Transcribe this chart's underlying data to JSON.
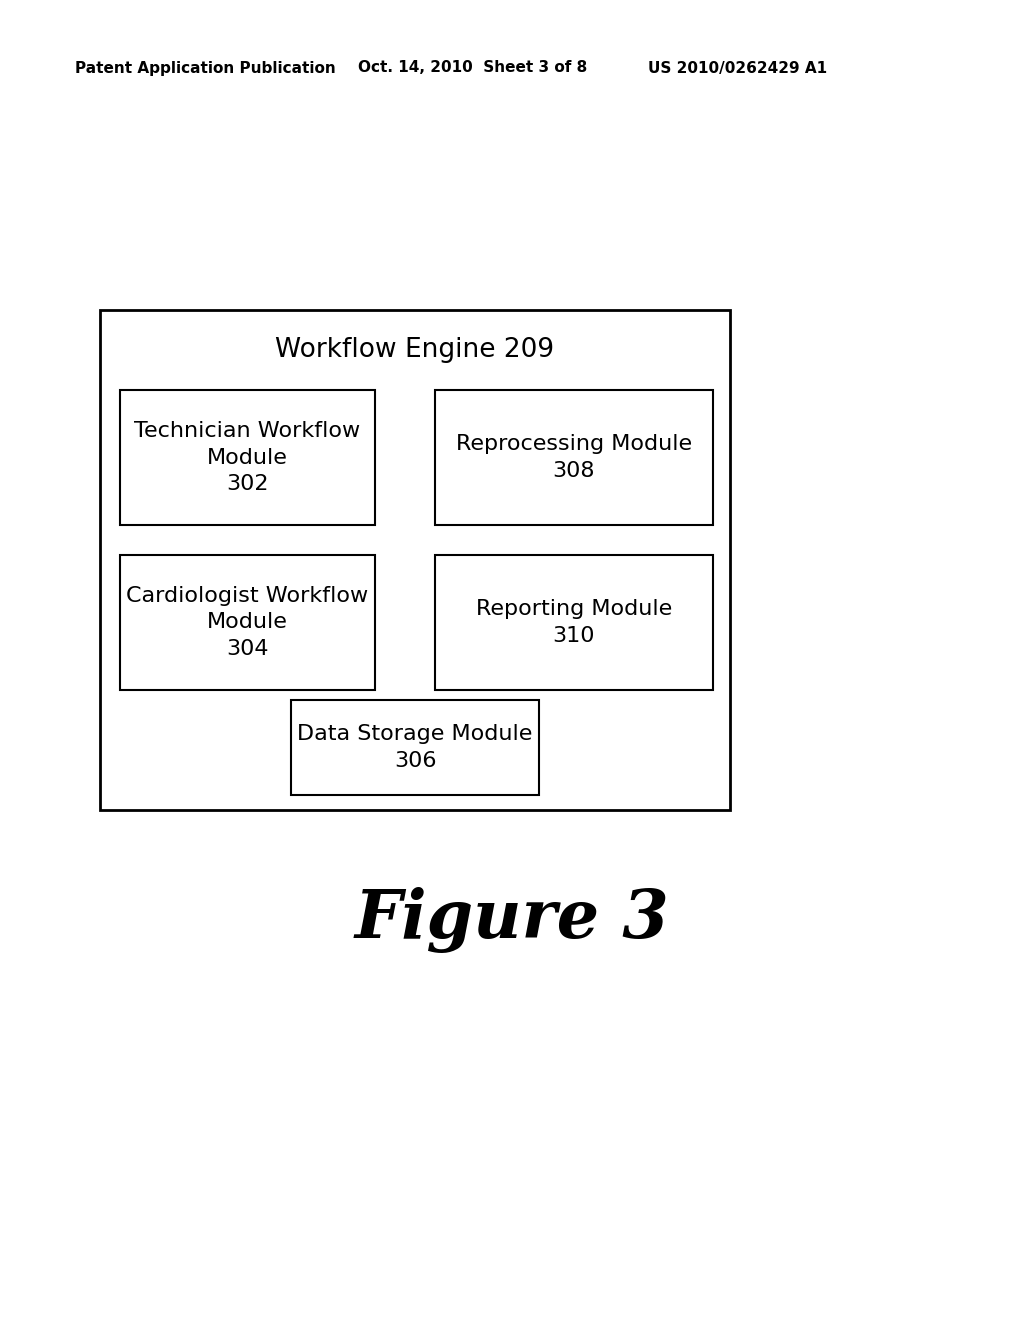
{
  "background_color": "#ffffff",
  "header_left": "Patent Application Publication",
  "header_center": "Oct. 14, 2010  Sheet 3 of 8",
  "header_right": "US 2010/0262429 A1",
  "figure_label": "Figure 3",
  "outer_box_title": "Workflow Engine 209",
  "boxes": [
    {
      "label": "Technician Workflow\nModule\n302",
      "col": 0,
      "row": 0
    },
    {
      "label": "Reprocessing Module\n308",
      "col": 1,
      "row": 0
    },
    {
      "label": "Cardiologist Workflow\nModule\n304",
      "col": 0,
      "row": 1
    },
    {
      "label": "Reporting Module\n310",
      "col": 1,
      "row": 1
    },
    {
      "label": "Data Storage Module\n306",
      "col": "center",
      "row": 2
    }
  ],
  "text_color": "#000000",
  "box_edge_color": "#000000",
  "outer_box_edge_color": "#000000",
  "header_fontsize": 11,
  "outer_title_fontsize": 19,
  "inner_label_fontsize": 16,
  "figure_label_fontsize": 48
}
